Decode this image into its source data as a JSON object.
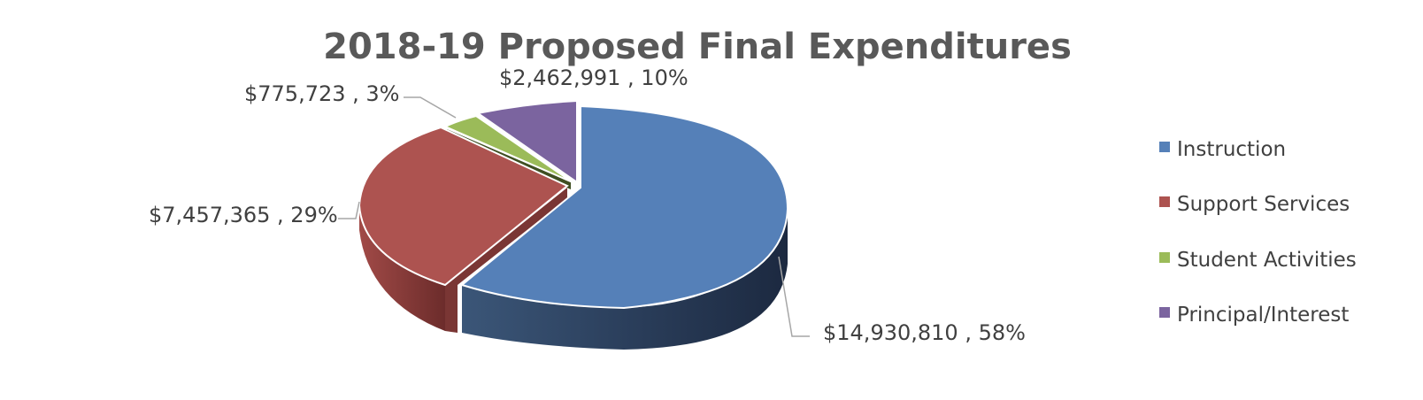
{
  "chart_data": {
    "type": "pie",
    "title": "2018-19 Proposed Final Expenditures",
    "categories": [
      "Instruction",
      "Support Services",
      "Student Activities",
      "Principal/Interest"
    ],
    "values": [
      14930810,
      7457365,
      775723,
      2462991
    ],
    "percents": [
      58,
      29,
      3,
      10
    ],
    "labels": [
      "$14,930,810 , 58%",
      "$7,457,365 , 29%",
      "$775,723 , 3%",
      "$2,462,991 , 10%"
    ],
    "colors": [
      "#5580b8",
      "#ad5350",
      "#9bbb59",
      "#7b649f"
    ],
    "legend_position": "right",
    "three_d": true,
    "exploded": true
  }
}
